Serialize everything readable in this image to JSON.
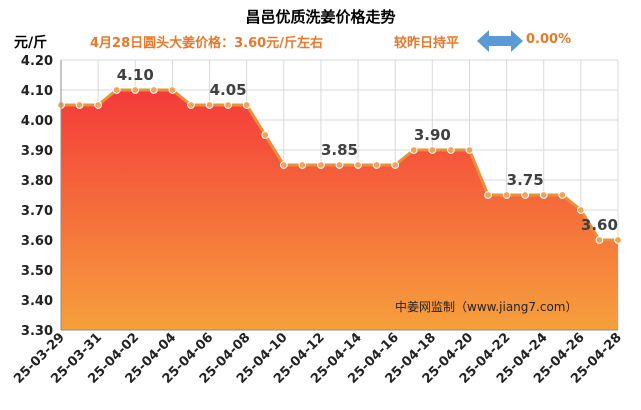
{
  "chart_data": {
    "type": "area",
    "title": "昌邑优质洗姜价格走势",
    "unit_label": "元/斤",
    "subtitle": "4月28日圆头大姜价格：3.60元/斤左右",
    "change_text": "较昨日持平",
    "change_value": "0.00%",
    "watermark": "中姜网监制（www.jiang7.com）",
    "ylim": [
      3.3,
      4.2
    ],
    "ytick_step": 0.1,
    "yticks": [
      "4.20",
      "4.10",
      "4.00",
      "3.90",
      "3.80",
      "3.70",
      "3.60",
      "3.50",
      "3.40",
      "3.30"
    ],
    "xtick_labels": [
      "25-03-29",
      "25-03-31",
      "25-04-02",
      "25-04-04",
      "25-04-06",
      "25-04-08",
      "25-04-10",
      "25-04-12",
      "25-04-14",
      "25-04-16",
      "25-04-18",
      "25-04-20",
      "25-04-22",
      "25-04-24",
      "25-04-26",
      "25-04-28"
    ],
    "x": [
      "25-03-29",
      "25-03-30",
      "25-03-31",
      "25-04-01",
      "25-04-02",
      "25-04-03",
      "25-04-04",
      "25-04-05",
      "25-04-06",
      "25-04-07",
      "25-04-08",
      "25-04-09",
      "25-04-10",
      "25-04-11",
      "25-04-12",
      "25-04-13",
      "25-04-14",
      "25-04-15",
      "25-04-16",
      "25-04-17",
      "25-04-18",
      "25-04-19",
      "25-04-20",
      "25-04-21",
      "25-04-22",
      "25-04-23",
      "25-04-24",
      "25-04-25",
      "25-04-26",
      "25-04-27",
      "25-04-28"
    ],
    "values": [
      4.05,
      4.05,
      4.05,
      4.1,
      4.1,
      4.1,
      4.1,
      4.05,
      4.05,
      4.05,
      4.05,
      3.95,
      3.85,
      3.85,
      3.85,
      3.85,
      3.85,
      3.85,
      3.85,
      3.9,
      3.9,
      3.9,
      3.9,
      3.75,
      3.75,
      3.75,
      3.75,
      3.75,
      3.7,
      3.6,
      3.6
    ],
    "annotations": [
      {
        "index": 4,
        "text": "4.10"
      },
      {
        "index": 9,
        "text": "4.05"
      },
      {
        "index": 15,
        "text": "3.85"
      },
      {
        "index": 20,
        "text": "3.90"
      },
      {
        "index": 25,
        "text": "3.75"
      },
      {
        "index": 29,
        "text": "3.60"
      }
    ],
    "grid": true,
    "colors": {
      "line": "#e8913a",
      "point": "#f2a35a",
      "fill_top": "#f43a3a",
      "fill_bottom": "#f6a03c",
      "title": "#000000",
      "accent": "#e8782a",
      "arrow": "#5b9bd5",
      "label": "#404040"
    }
  }
}
